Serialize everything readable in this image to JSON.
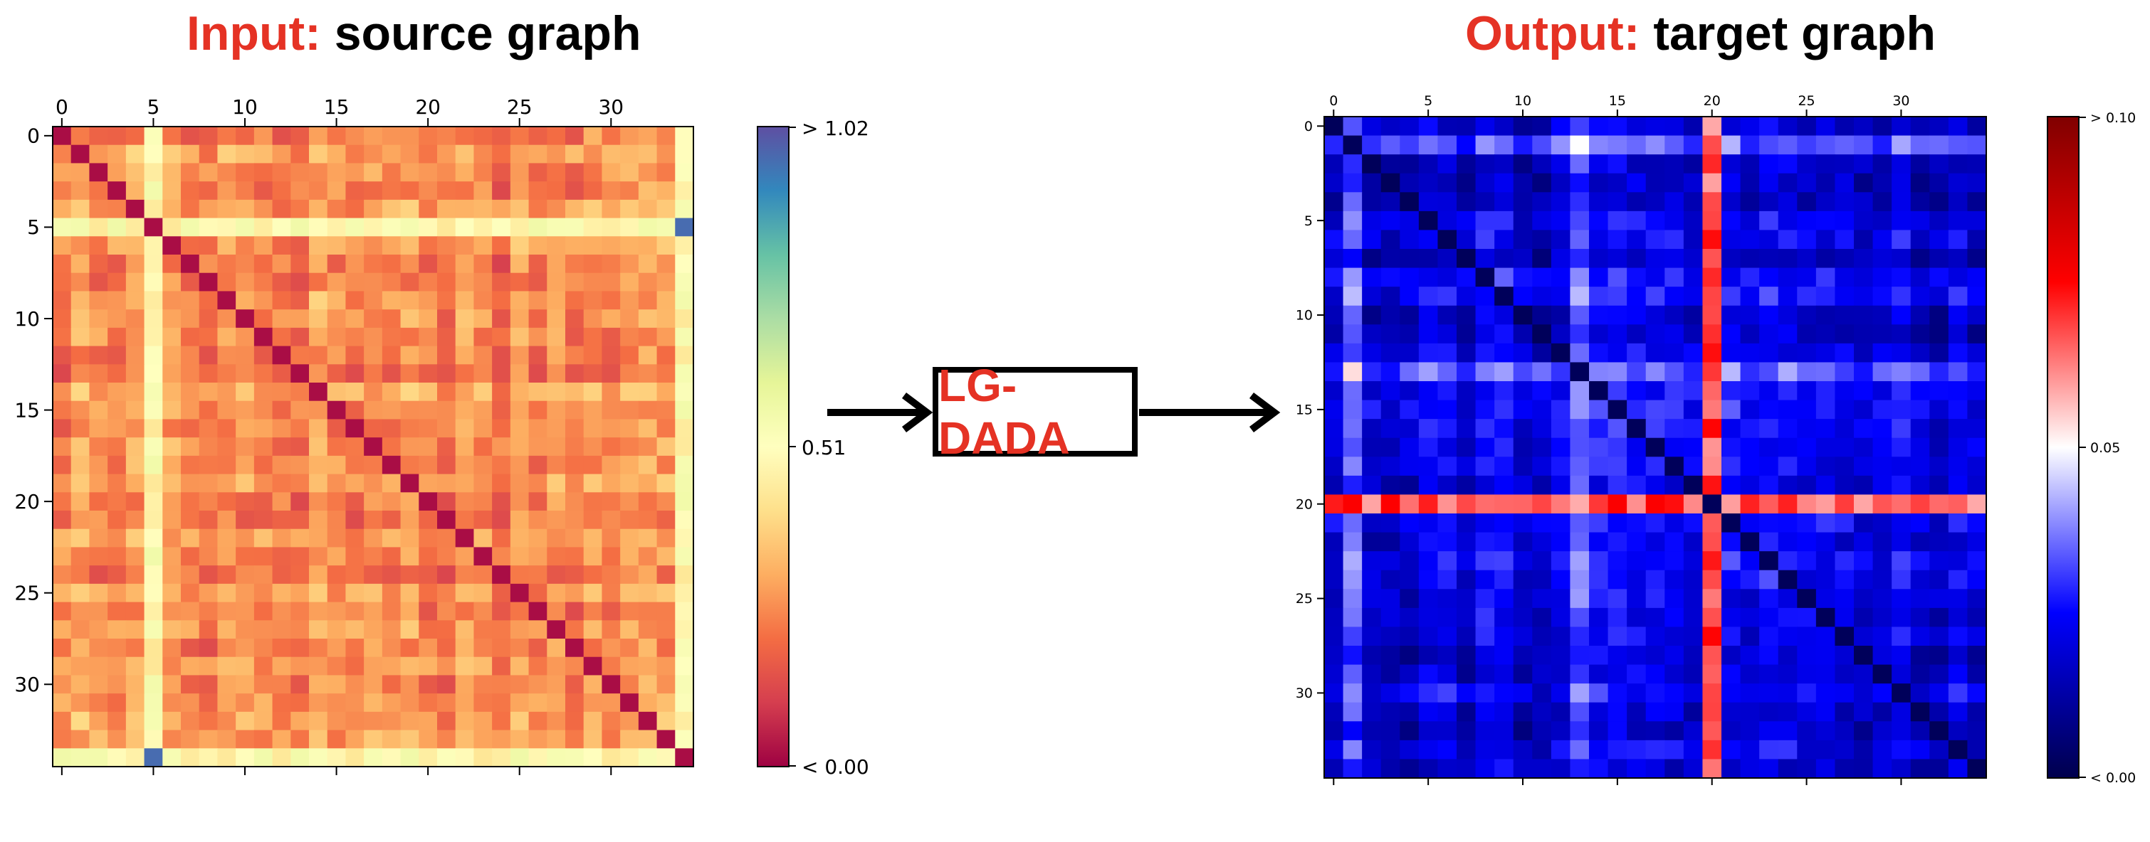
{
  "left_title": {
    "accent": "Input:",
    "rest": "source graph"
  },
  "right_title": {
    "accent": "Output:",
    "rest": "target graph"
  },
  "process_label": "LG-DADA",
  "colors": {
    "accent": "#e53224",
    "arrow": "#000000"
  },
  "chart_data": [
    {
      "type": "heatmap",
      "name": "source graph",
      "rows": 35,
      "cols": 35,
      "x_ticks": [
        "0",
        "5",
        "10",
        "15",
        "20",
        "25",
        "30"
      ],
      "y_ticks": [
        "0",
        "5",
        "10",
        "15",
        "20",
        "25",
        "30"
      ],
      "colormap": "Spectral",
      "colorbar": {
        "labels": [
          "> 1.02",
          "0.51",
          "< 0.00"
        ],
        "min": 0.0,
        "mid": 0.51,
        "max": 1.02
      },
      "highlight_rows_cols": [
        5,
        34
      ],
      "note": "values approximately 0.1–0.5 with bright rows/cols at node 5 and 34"
    },
    {
      "type": "heatmap",
      "name": "target graph",
      "rows": 35,
      "cols": 35,
      "x_ticks": [
        "0",
        "5",
        "10",
        "15",
        "20",
        "25",
        "30"
      ],
      "y_ticks": [
        "0",
        "5",
        "10",
        "15",
        "20",
        "25",
        "30"
      ],
      "colormap": "seismic",
      "colorbar": {
        "labels": [
          "> 0.10",
          "0.05",
          "< 0.00"
        ],
        "min": 0.0,
        "mid": 0.05,
        "max": 0.1
      },
      "highlight_rows_cols": [
        20
      ],
      "note": "mostly low values (blue) with high-value row/col at node 20"
    }
  ]
}
